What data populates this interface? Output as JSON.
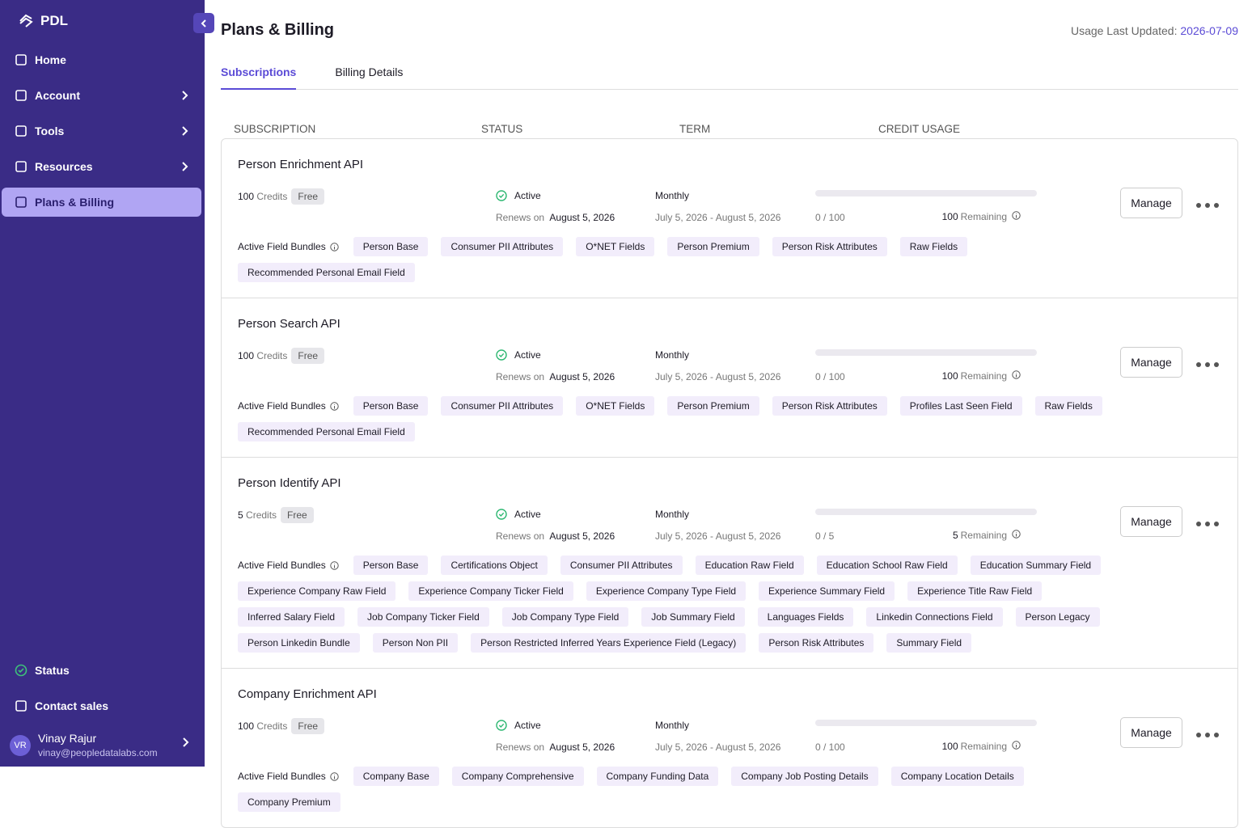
{
  "sidebar": {
    "logo": "PDL",
    "nav": [
      "Home",
      "Account",
      "Tools",
      "Resources",
      "Plans & Billing"
    ],
    "active": 4,
    "expandable": [
      1,
      2,
      3
    ],
    "footer_nav": [
      "Status",
      "Contact sales"
    ],
    "user": {
      "initials": "VR",
      "name": "Vinay Rajur",
      "email": "vinay@peopledatalabs.com"
    }
  },
  "header": {
    "title": "Plans & Billing",
    "usage_label": "Usage Last Updated:",
    "usage_date": "2026-07-09"
  },
  "tabs": [
    "Subscriptions",
    "Billing Details"
  ],
  "columns": [
    "SUBSCRIPTION",
    "STATUS",
    "TERM",
    "CREDIT USAGE"
  ],
  "subscriptions": [
    {
      "name": "Person Enrichment API",
      "credits": "100",
      "credits_label": "Credits",
      "plan": "Free",
      "status": "Active",
      "renews_label": "Renews on",
      "renews_date": "August 5, 2026",
      "term": "Monthly",
      "period": "July 5, 2026 - August 5, 2026",
      "usage": "0 / 100",
      "remaining": "100",
      "remaining_label": "Remaining",
      "manage": "Manage",
      "bundles_label": "Active Field Bundles",
      "bundles": [
        "Person Base",
        "Consumer PII Attributes",
        "O*NET Fields",
        "Person Premium",
        "Person Risk Attributes",
        "Raw Fields",
        "Recommended Personal Email Field"
      ]
    },
    {
      "name": "Person Search API",
      "credits": "100",
      "credits_label": "Credits",
      "plan": "Free",
      "status": "Active",
      "renews_label": "Renews on",
      "renews_date": "August 5, 2026",
      "term": "Monthly",
      "period": "July 5, 2026 - August 5, 2026",
      "usage": "0 / 100",
      "remaining": "100",
      "remaining_label": "Remaining",
      "manage": "Manage",
      "bundles_label": "Active Field Bundles",
      "bundles": [
        "Person Base",
        "Consumer PII Attributes",
        "O*NET Fields",
        "Person Premium",
        "Person Risk Attributes",
        "Profiles Last Seen Field",
        "Raw Fields",
        "Recommended Personal Email Field"
      ]
    },
    {
      "name": "Person Identify API",
      "credits": "5",
      "credits_label": "Credits",
      "plan": "Free",
      "status": "Active",
      "renews_label": "Renews on",
      "renews_date": "August 5, 2026",
      "term": "Monthly",
      "period": "July 5, 2026 - August 5, 2026",
      "usage": "0 / 5",
      "remaining": "5",
      "remaining_label": "Remaining",
      "manage": "Manage",
      "bundles_label": "Active Field Bundles",
      "bundles": [
        "Person Base",
        "Certifications Object",
        "Consumer PII Attributes",
        "Education Raw Field",
        "Education School Raw Field",
        "Education Summary Field",
        "Experience Company Raw Field",
        "Experience Company Ticker Field",
        "Experience Company Type Field",
        "Experience Summary Field",
        "Experience Title Raw Field",
        "Inferred Salary Field",
        "Job Company Ticker Field",
        "Job Company Type Field",
        "Job Summary Field",
        "Languages Fields",
        "Linkedin Connections Field",
        "Person Legacy",
        "Person Linkedin Bundle",
        "Person Non PII",
        "Person Restricted Inferred Years Experience Field (Legacy)",
        "Person Risk Attributes",
        "Summary Field"
      ]
    },
    {
      "name": "Company Enrichment API",
      "credits": "100",
      "credits_label": "Credits",
      "plan": "Free",
      "status": "Active",
      "renews_label": "Renews on",
      "renews_date": "August 5, 2026",
      "term": "Monthly",
      "period": "July 5, 2026 - August 5, 2026",
      "usage": "0 / 100",
      "remaining": "100",
      "remaining_label": "Remaining",
      "manage": "Manage",
      "bundles_label": "Active Field Bundles",
      "bundles": [
        "Company Base",
        "Company Comprehensive",
        "Company Funding Data",
        "Company Job Posting Details",
        "Company Location Details",
        "Company Premium"
      ]
    }
  ]
}
